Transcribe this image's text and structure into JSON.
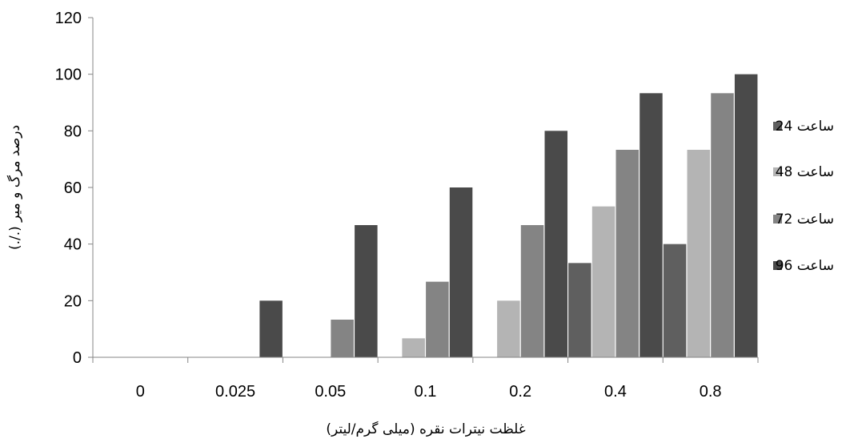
{
  "chart_data": {
    "type": "bar",
    "title": "",
    "xlabel": "غلظت نیترات نقره (میلی گرم/لیتر)",
    "ylabel": "درصد مرگ و میر (./.)",
    "categories": [
      "0",
      "0.025",
      "0.05",
      "0.1",
      "0.2",
      "0.4",
      "0.8"
    ],
    "ylim": [
      0,
      120
    ],
    "yticks": [
      "0",
      "20",
      "40",
      "60",
      "80",
      "100",
      "120"
    ],
    "grid": false,
    "legend_position": "right",
    "series": [
      {
        "name": "24 ساعت",
        "color": "#5f5f5f",
        "values": [
          0,
          0,
          0,
          0,
          0,
          33.3,
          40
        ]
      },
      {
        "name": "48 ساعت",
        "color": "#b4b4b4",
        "values": [
          0,
          0,
          0,
          6.7,
          20,
          53.3,
          73.3
        ]
      },
      {
        "name": "72 ساعت",
        "color": "#848484",
        "values": [
          0,
          0,
          13.3,
          26.7,
          46.7,
          73.3,
          93.3
        ]
      },
      {
        "name": "96 ساعت",
        "color": "#4a4a4a",
        "values": [
          0,
          20,
          46.7,
          60,
          80,
          93.3,
          100
        ]
      }
    ]
  }
}
